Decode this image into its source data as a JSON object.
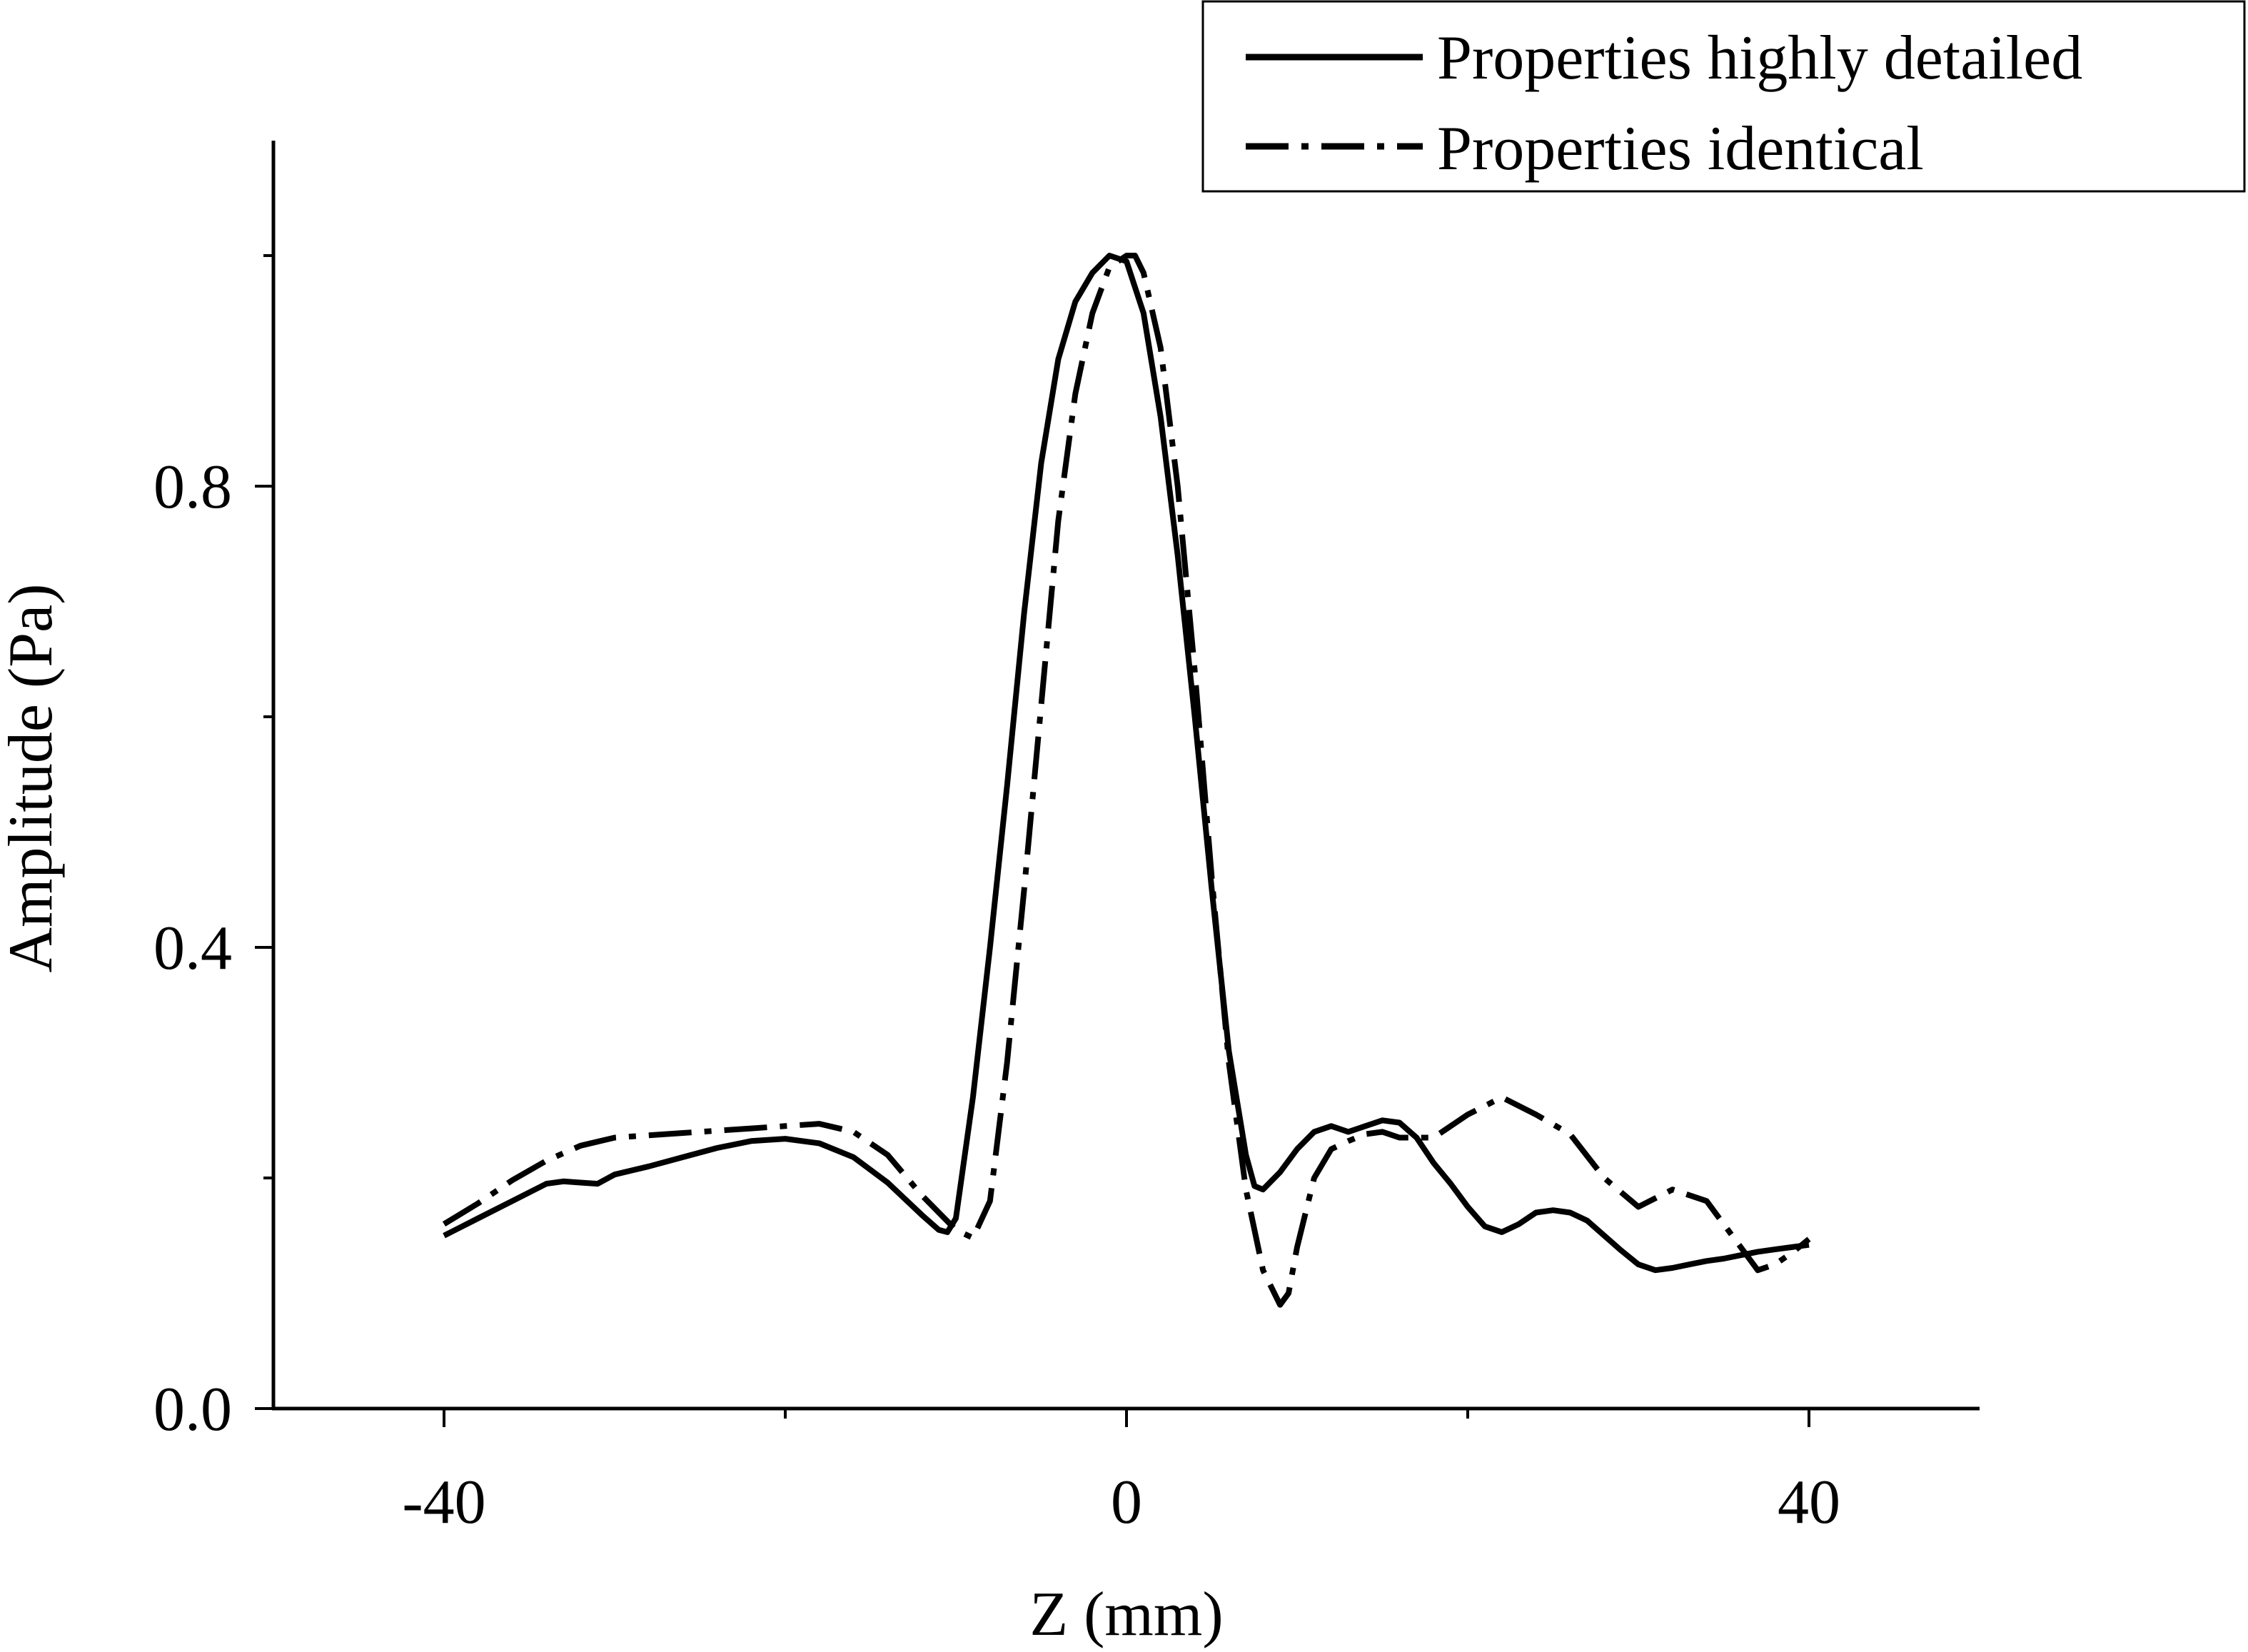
{
  "chart_data": {
    "type": "line",
    "title": "",
    "xlabel": "Z (mm)",
    "ylabel": "Amplitude (Pa)",
    "xlim": [
      -50,
      50
    ],
    "ylim": [
      0,
      1.0
    ],
    "x_ticks": [
      {
        "value": -40,
        "label": "-40"
      },
      {
        "value": 0,
        "label": "0"
      },
      {
        "value": 40,
        "label": "40"
      }
    ],
    "y_ticks": [
      {
        "value": 0.0,
        "label": "0.0"
      },
      {
        "value": 0.4,
        "label": "0.4"
      },
      {
        "value": 0.8,
        "label": "0.8"
      }
    ],
    "grid": false,
    "legend_position": "top-right",
    "series": [
      {
        "name": "Properties highly detailed",
        "style": "solid",
        "color": "#000000",
        "x": [
          -40,
          -38,
          -36,
          -34,
          -33,
          -32,
          -31,
          -30,
          -28,
          -26,
          -24,
          -22,
          -20,
          -18,
          -16,
          -14,
          -12,
          -11,
          -10.5,
          -10,
          -9,
          -8,
          -7,
          -6,
          -5,
          -4,
          -3,
          -2,
          -1,
          0,
          1,
          2,
          3,
          4,
          5,
          6,
          7,
          7.5,
          8,
          9,
          10,
          11,
          12,
          13,
          14,
          15,
          16,
          17,
          18,
          19,
          20,
          21,
          22,
          23,
          24,
          25,
          26,
          27,
          28,
          29,
          30,
          31,
          32,
          33,
          34,
          35,
          36,
          37,
          38,
          39,
          40
        ],
        "y": [
          0.15,
          0.165,
          0.18,
          0.195,
          0.197,
          0.196,
          0.195,
          0.203,
          0.21,
          0.218,
          0.226,
          0.232,
          0.234,
          0.23,
          0.218,
          0.196,
          0.168,
          0.155,
          0.153,
          0.165,
          0.27,
          0.4,
          0.54,
          0.69,
          0.82,
          0.91,
          0.96,
          0.985,
          1.0,
          0.995,
          0.95,
          0.86,
          0.74,
          0.6,
          0.45,
          0.31,
          0.22,
          0.193,
          0.19,
          0.205,
          0.225,
          0.24,
          0.245,
          0.24,
          0.245,
          0.25,
          0.248,
          0.235,
          0.213,
          0.195,
          0.175,
          0.158,
          0.153,
          0.16,
          0.17,
          0.172,
          0.17,
          0.163,
          0.15,
          0.137,
          0.125,
          0.12,
          0.122,
          0.125,
          0.128,
          0.13,
          0.133,
          0.136,
          0.138,
          0.14,
          0.142
        ]
      },
      {
        "name": "Properties identical",
        "style": "dashdot",
        "color": "#000000",
        "x": [
          -40,
          -38,
          -36,
          -34,
          -32,
          -30,
          -28,
          -26,
          -24,
          -22,
          -20,
          -18,
          -16,
          -14,
          -12,
          -10,
          -9,
          -8,
          -7,
          -6,
          -5,
          -4,
          -3,
          -2,
          -1,
          0,
          0.5,
          1,
          2,
          3,
          4,
          5,
          6,
          7,
          8,
          9,
          9.5,
          10,
          11,
          12,
          13,
          14,
          15,
          16,
          18,
          20,
          22,
          24,
          26,
          28,
          30,
          32,
          34,
          36,
          37,
          38,
          39,
          40
        ],
        "y": [
          0.16,
          0.178,
          0.198,
          0.215,
          0.228,
          0.235,
          0.237,
          0.239,
          0.241,
          0.243,
          0.245,
          0.247,
          0.24,
          0.22,
          0.185,
          0.155,
          0.148,
          0.18,
          0.3,
          0.45,
          0.61,
          0.77,
          0.88,
          0.95,
          0.99,
          1.0,
          1.0,
          0.985,
          0.92,
          0.8,
          0.64,
          0.46,
          0.3,
          0.19,
          0.12,
          0.09,
          0.1,
          0.14,
          0.2,
          0.225,
          0.232,
          0.238,
          0.24,
          0.235,
          0.235,
          0.255,
          0.27,
          0.255,
          0.238,
          0.2,
          0.175,
          0.19,
          0.18,
          0.14,
          0.12,
          0.125,
          0.135,
          0.147
        ]
      }
    ]
  }
}
